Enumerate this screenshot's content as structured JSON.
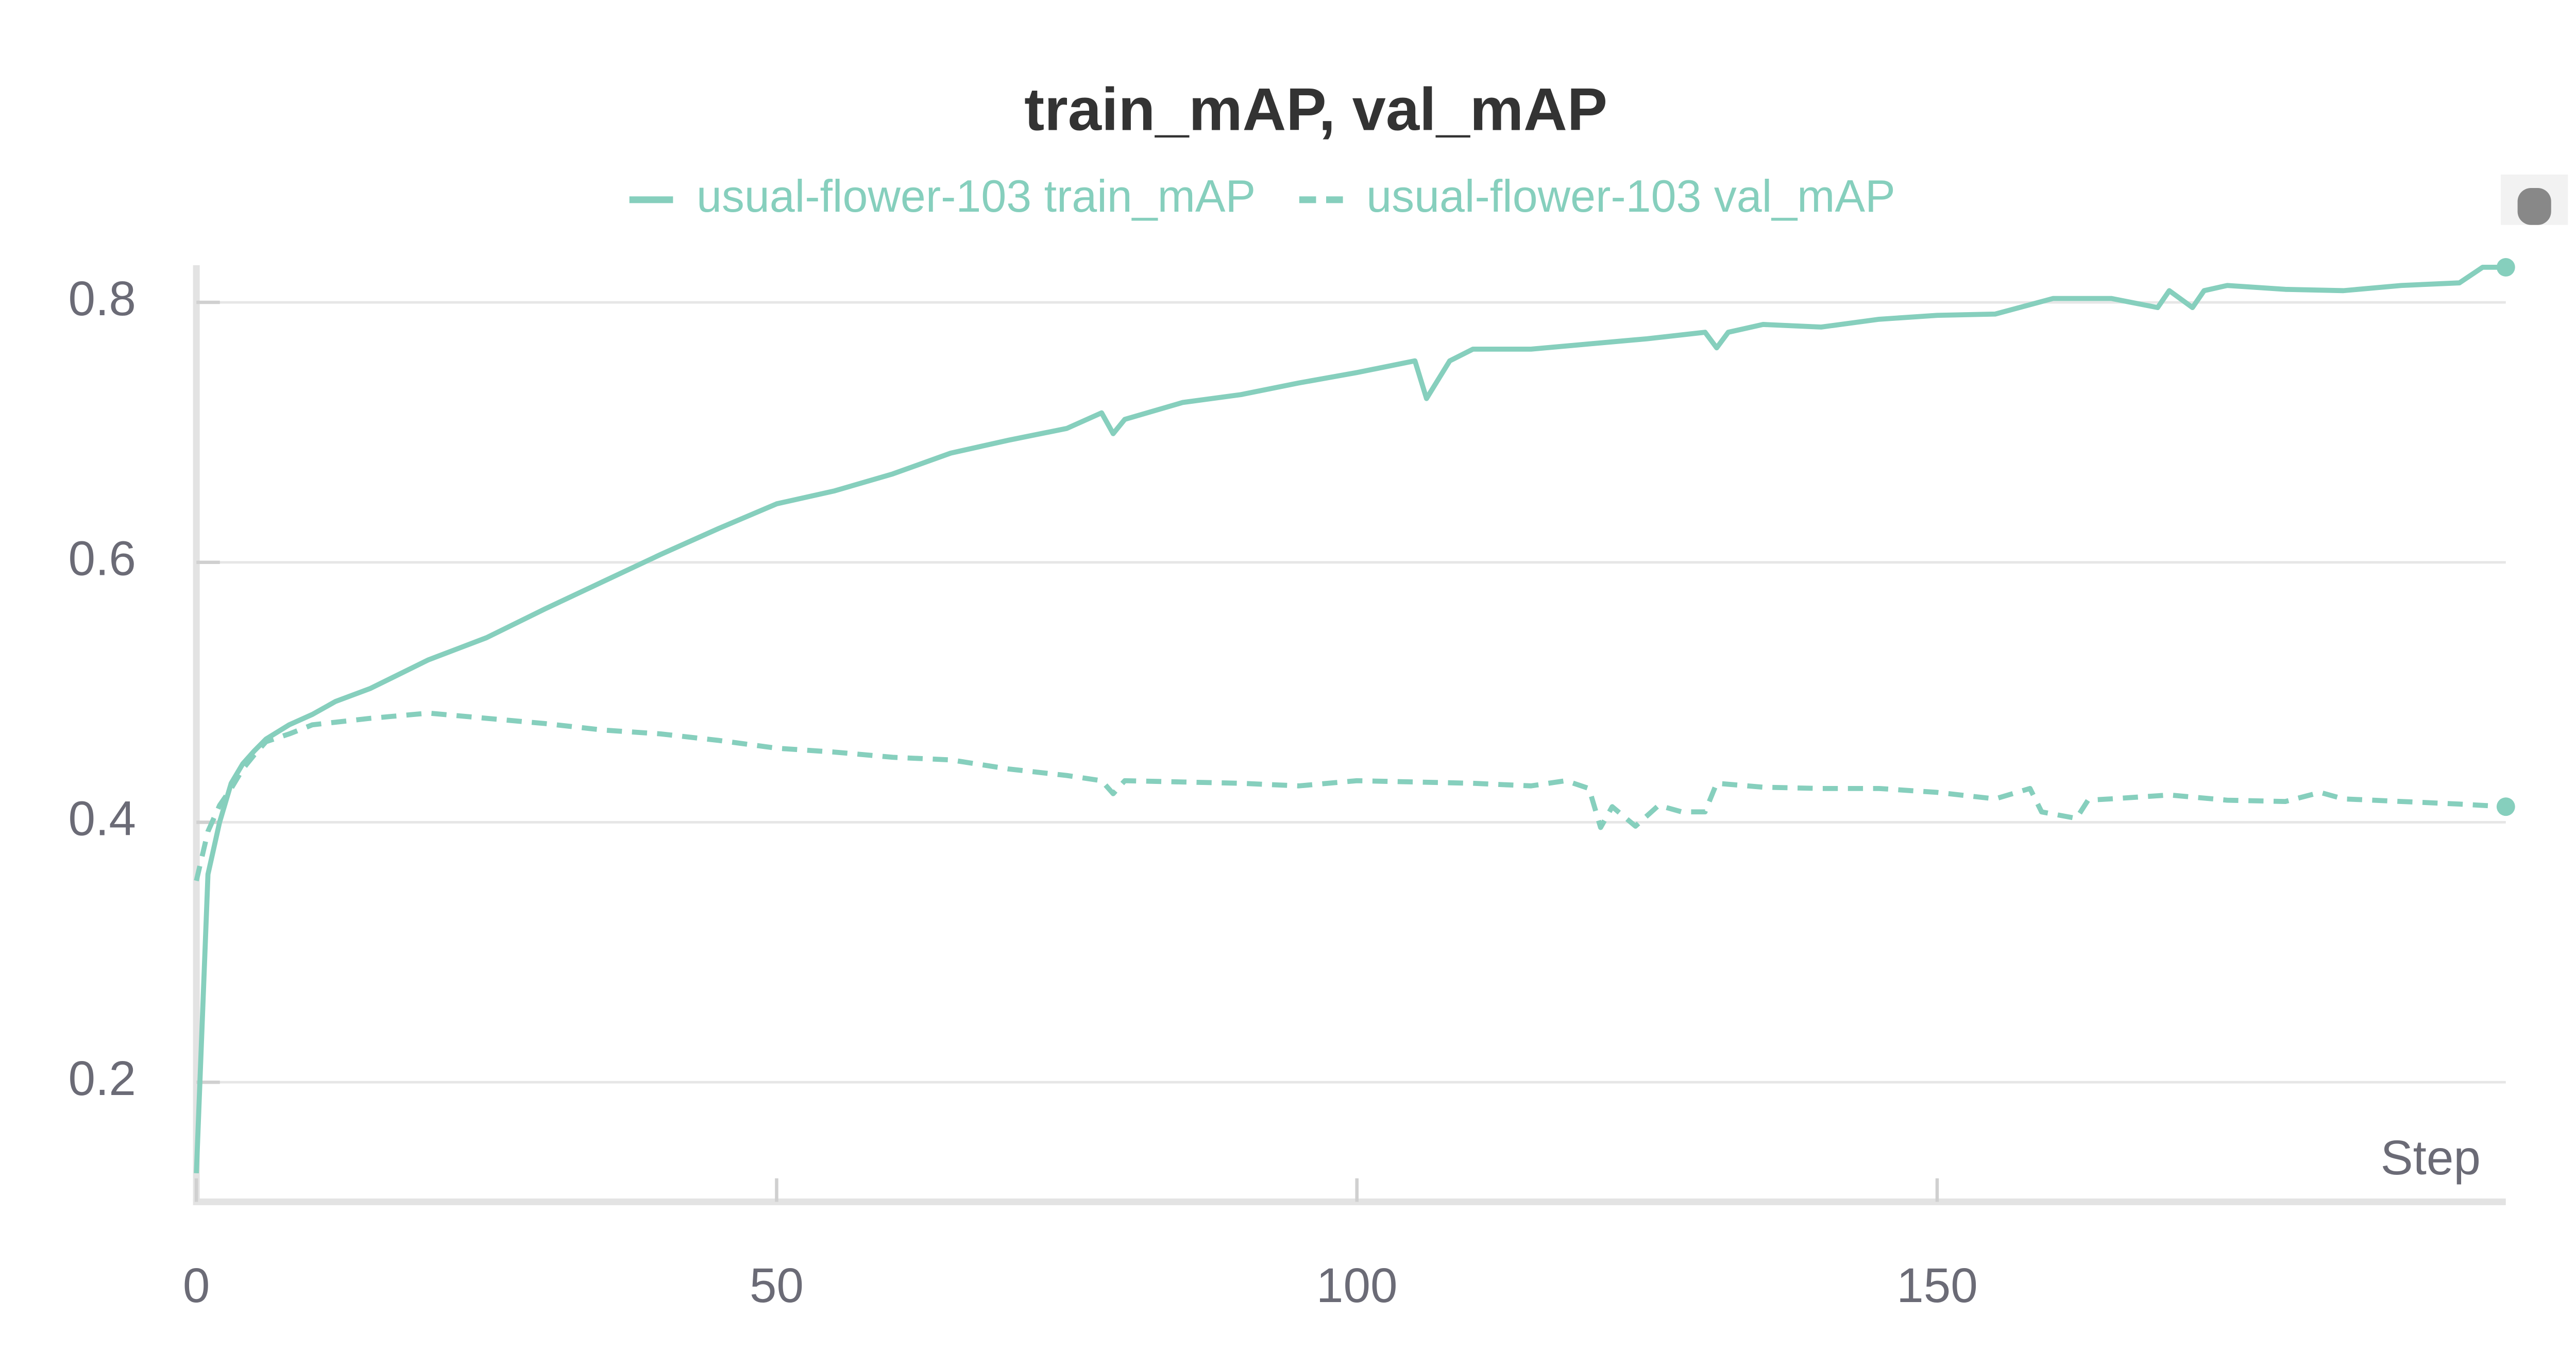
{
  "chart_data": {
    "type": "line",
    "title": "train_mAP, val_mAP",
    "x_label": "Step",
    "xlim": [
      0,
      199
    ],
    "ylim": [
      0.108,
      0.826
    ],
    "xticks": [
      0,
      50,
      100,
      150
    ],
    "yticks": [
      0.2,
      0.4,
      0.6,
      0.8
    ],
    "grid": true,
    "legend": "top",
    "series": [
      {
        "name": "usual-flower-103 train_mAP",
        "color": "#86cfbd",
        "line_style": "solid",
        "x": [
          0,
          1,
          2,
          3,
          4,
          5,
          6,
          8,
          10,
          12,
          15,
          20,
          25,
          30,
          35,
          40,
          45,
          50,
          55,
          60,
          65,
          70,
          75,
          78,
          79,
          80,
          85,
          90,
          95,
          100,
          105,
          106,
          108,
          110,
          115,
          120,
          125,
          130,
          131,
          132,
          135,
          140,
          145,
          150,
          155,
          160,
          165,
          169,
          170,
          172,
          173,
          175,
          180,
          185,
          190,
          195,
          197,
          199
        ],
        "values": [
          0.13,
          0.36,
          0.4,
          0.43,
          0.445,
          0.455,
          0.464,
          0.475,
          0.483,
          0.493,
          0.503,
          0.525,
          0.542,
          0.564,
          0.585,
          0.606,
          0.626,
          0.645,
          0.655,
          0.668,
          0.684,
          0.694,
          0.703,
          0.715,
          0.699,
          0.71,
          0.723,
          0.729,
          0.738,
          0.746,
          0.755,
          0.726,
          0.755,
          0.764,
          0.764,
          0.768,
          0.772,
          0.777,
          0.765,
          0.777,
          0.783,
          0.781,
          0.787,
          0.79,
          0.791,
          0.803,
          0.803,
          0.796,
          0.809,
          0.796,
          0.809,
          0.813,
          0.81,
          0.809,
          0.813,
          0.815,
          0.827,
          0.827
        ]
      },
      {
        "name": "usual-flower-103 val_mAP",
        "color": "#86cfbd",
        "line_style": "dashed",
        "x": [
          0,
          1,
          2,
          3,
          4,
          5,
          6,
          8,
          10,
          15,
          20,
          25,
          30,
          35,
          40,
          45,
          50,
          55,
          60,
          65,
          70,
          75,
          78,
          79,
          80,
          85,
          90,
          95,
          100,
          105,
          110,
          115,
          118,
          120,
          121,
          122,
          124,
          126,
          128,
          130,
          131,
          135,
          140,
          145,
          150,
          155,
          158,
          159,
          162,
          163,
          165,
          170,
          175,
          180,
          183,
          185,
          190,
          195,
          199
        ],
        "values": [
          0.355,
          0.393,
          0.413,
          0.426,
          0.441,
          0.452,
          0.462,
          0.468,
          0.475,
          0.48,
          0.484,
          0.48,
          0.476,
          0.471,
          0.468,
          0.463,
          0.457,
          0.454,
          0.45,
          0.448,
          0.441,
          0.436,
          0.432,
          0.422,
          0.432,
          0.431,
          0.43,
          0.428,
          0.432,
          0.431,
          0.43,
          0.428,
          0.432,
          0.426,
          0.396,
          0.412,
          0.397,
          0.413,
          0.408,
          0.408,
          0.43,
          0.427,
          0.426,
          0.426,
          0.423,
          0.418,
          0.426,
          0.408,
          0.403,
          0.417,
          0.418,
          0.421,
          0.417,
          0.416,
          0.423,
          0.418,
          0.416,
          0.414,
          0.412
        ]
      }
    ]
  }
}
